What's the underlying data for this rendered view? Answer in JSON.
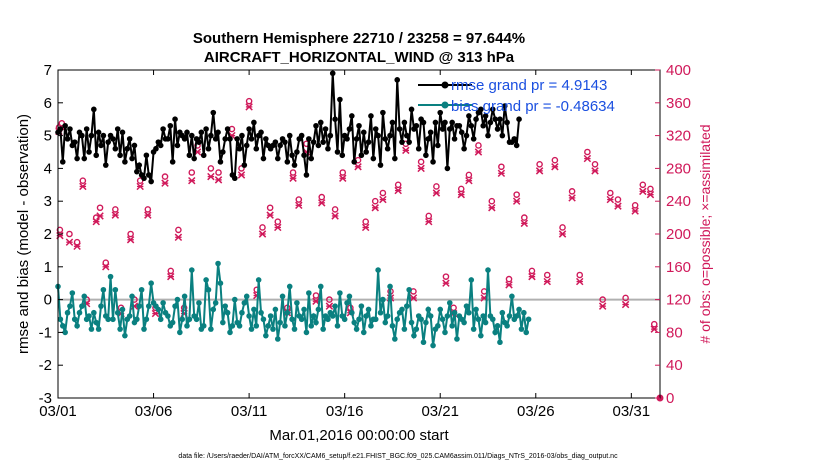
{
  "chart_data": {
    "type": "line",
    "title_line1": "Southern Hemisphere 22710 / 23258 = 97.644%",
    "title_line2": "AIRCRAFT_HORIZONTAL_WIND @ 313 hPa",
    "ylabel": "rmse and bias (model - observation)",
    "y2label": "# of obs: o=possible; ×=assimilated",
    "xlabel": "Mar.01,2016 00:00:00 start",
    "footnote": "data file: /Users/raeder/DAI/ATM_forcXX/CAM6_setup/f.e21.FHIST_BGC.f09_025.CAM6assim.011/Diags_NTrS_2016-03/obs_diag_output.nc",
    "xlim": [
      0,
      31.5
    ],
    "ylim": [
      -3,
      7
    ],
    "y2lim": [
      0,
      400
    ],
    "x_ticks": [
      {
        "value": 0,
        "label": "03/01"
      },
      {
        "value": 5,
        "label": "03/06"
      },
      {
        "value": 10,
        "label": "03/11"
      },
      {
        "value": 15,
        "label": "03/16"
      },
      {
        "value": 20,
        "label": "03/21"
      },
      {
        "value": 25,
        "label": "03/26"
      },
      {
        "value": 30,
        "label": "03/31"
      }
    ],
    "y_ticks": [
      "-3",
      "-2",
      "-1",
      "0",
      "1",
      "2",
      "3",
      "4",
      "5",
      "6",
      "7"
    ],
    "y2_ticks": [
      "0",
      "40",
      "80",
      "120",
      "160",
      "200",
      "240",
      "280",
      "320",
      "360",
      "400"
    ],
    "legend": [
      {
        "label": "rmse grand pr = 4.9143",
        "color": "#000000"
      },
      {
        "label": "bias grand pr = -0.48634",
        "color": "#0a8080"
      }
    ],
    "colors": {
      "rmse": "#000000",
      "bias": "#0a8080",
      "obs": "#d0195a",
      "zero": "#b0b0b0"
    },
    "step": 0.125,
    "rmse": [
      5.1,
      5.2,
      4.2,
      5.3,
      4.9,
      5.2,
      4.7,
      4.8,
      4.3,
      5.1,
      5.0,
      4.3,
      5.2,
      4.5,
      5.0,
      5.8,
      4.4,
      5.1,
      4.7,
      5.0,
      4.1,
      4.8,
      5.0,
      4.9,
      4.6,
      5.2,
      4.4,
      5.1,
      4.2,
      4.6,
      4.9,
      4.3,
      4.7,
      3.9,
      4.1,
      3.8,
      3.7,
      4.4,
      3.8,
      3.6,
      4.5,
      4.6,
      4.8,
      4.7,
      5.2,
      4.9,
      4.9,
      5.3,
      4.2,
      5.5,
      4.7,
      5.1,
      5.0,
      4.9,
      5.1,
      4.4,
      5.0,
      4.3,
      4.9,
      4.8,
      5.1,
      4.4,
      5.2,
      4.6,
      5.0,
      5.7,
      4.9,
      5.1,
      4.2,
      4.5,
      4.9,
      5.2,
      4.9,
      3.8,
      3.7,
      4.9,
      4.6,
      5.0,
      4.1,
      4.7,
      5.2,
      4.9,
      5.4,
      4.6,
      5.0,
      5.1,
      4.3,
      4.9,
      4.7,
      4.6,
      4.7,
      4.8,
      4.3,
      4.7,
      4.9,
      4.8,
      4.2,
      5.0,
      4.4,
      4.1,
      4.5,
      4.9,
      5.0,
      4.4,
      3.8,
      4.9,
      4.3,
      4.8,
      5.3,
      4.7,
      5.4,
      4.8,
      5.2,
      4.6,
      5.0,
      6.9,
      5.5,
      4.5,
      6.1,
      4.4,
      5.0,
      4.9,
      5.2,
      5.6,
      4.2,
      4.9,
      5.3,
      4.4,
      5.1,
      4.5,
      4.8,
      5.6,
      4.3,
      5.2,
      5.0,
      4.1,
      5.7,
      4.9,
      4.6,
      5.0,
      5.4,
      4.3,
      6.7,
      5.2,
      4.8,
      5.4,
      5.0,
      4.8,
      5.8,
      5.2,
      5.3,
      4.6,
      5.5,
      5.4,
      4.4,
      4.9,
      5.1,
      4.2,
      5.4,
      4.7,
      5.7,
      5.2,
      5.4,
      4.0,
      5.2,
      5.4,
      4.9,
      5.3,
      5.3,
      5.1,
      4.6,
      5.0,
      5.6,
      5.3,
      4.9,
      5.5,
      5.7,
      5.8,
      5.3,
      5.6,
      5.0,
      5.4,
      5.8,
      5.5,
      5.2,
      5.5,
      5.0,
      5.9,
      5.4,
      4.8,
      4.8,
      4.9,
      4.7,
      5.5
    ],
    "bias": [
      0.4,
      -0.6,
      -0.8,
      -1.0,
      -0.4,
      -0.2,
      0.2,
      -0.6,
      -0.8,
      -0.4,
      -0.2,
      0.1,
      -0.6,
      -0.5,
      -0.9,
      -0.4,
      -0.7,
      -0.9,
      -0.2,
      0.3,
      -0.5,
      -0.6,
      0.7,
      -0.6,
      0.3,
      -0.4,
      -0.9,
      -0.3,
      -1.1,
      -0.6,
      -0.5,
      0.1,
      -0.7,
      -0.6,
      -0.2,
      0.3,
      -0.9,
      -0.6,
      -0.2,
      0.5,
      -0.1,
      -0.2,
      -0.3,
      -0.6,
      -0.1,
      -0.4,
      -0.5,
      -0.8,
      -0.7,
      -0.2,
      0.0,
      -1.0,
      -0.6,
      0.1,
      -0.8,
      -0.6,
      0.9,
      -0.5,
      -0.6,
      -0.1,
      -0.9,
      -0.8,
      0.6,
      0.3,
      -0.9,
      -0.3,
      -0.1,
      1.1,
      0.5,
      -0.7,
      -0.2,
      -0.4,
      -1.0,
      -0.8,
      0.0,
      -0.7,
      -0.8,
      -0.4,
      -0.1,
      0.1,
      -0.5,
      -0.9,
      -0.3,
      -0.8,
      0.6,
      -0.4,
      -0.6,
      -1.1,
      -0.8,
      -0.5,
      -0.9,
      -0.3,
      -1.2,
      -0.7,
      0.1,
      -0.8,
      -0.4,
      0.4,
      -0.6,
      -0.9,
      -0.1,
      -0.5,
      -0.6,
      -0.3,
      -1.0,
      0.2,
      -0.8,
      -0.5,
      -0.7,
      -0.3,
      0.4,
      -0.9,
      -0.5,
      -0.6,
      -0.4,
      -0.5,
      -0.2,
      -0.8,
      0.2,
      -0.5,
      -0.6,
      -0.1,
      0.1,
      -0.4,
      -0.7,
      -0.9,
      -0.6,
      -0.2,
      -1.0,
      -0.5,
      -0.3,
      -0.8,
      -0.6,
      -0.6,
      0.9,
      -0.4,
      0.0,
      -0.7,
      -0.5,
      0.4,
      -0.8,
      -1.2,
      -0.6,
      -0.4,
      -0.3,
      -0.9,
      -0.2,
      0.3,
      -0.7,
      -1.1,
      -0.9,
      -0.5,
      -0.6,
      -1.3,
      -0.7,
      -0.3,
      -0.5,
      -1.4,
      -0.9,
      -0.8,
      -0.3,
      -0.6,
      -1.0,
      -0.5,
      -0.1,
      -0.8,
      -0.4,
      -1.2,
      -0.5,
      -0.6,
      -0.7,
      -0.2,
      -0.4,
      0.6,
      -0.9,
      -0.3,
      -0.6,
      -1.1,
      -0.5,
      -0.7,
      0.9,
      -0.5,
      -0.6,
      -1.0,
      -0.8,
      -1.3,
      -0.4,
      -0.7,
      -0.8,
      -0.5,
      0.1,
      -0.6,
      -0.5,
      -0.3,
      -0.9,
      -0.4,
      -1.0,
      -0.6
    ],
    "obs_possible_markers": [
      [
        0.05,
        330
      ],
      [
        0.2,
        335
      ],
      [
        0.1,
        205
      ],
      [
        0.6,
        200
      ],
      [
        1.0,
        190
      ],
      [
        1.3,
        265
      ],
      [
        1.5,
        120
      ],
      [
        2.0,
        220
      ],
      [
        2.2,
        232
      ],
      [
        2.5,
        165
      ],
      [
        3.0,
        230
      ],
      [
        3.3,
        110
      ],
      [
        3.8,
        200
      ],
      [
        4.0,
        120
      ],
      [
        4.3,
        265
      ],
      [
        4.7,
        230
      ],
      [
        5.1,
        110
      ],
      [
        5.6,
        270
      ],
      [
        5.9,
        155
      ],
      [
        6.3,
        205
      ],
      [
        6.6,
        110
      ],
      [
        7.0,
        275
      ],
      [
        7.3,
        308
      ],
      [
        8.0,
        280
      ],
      [
        8.4,
        275
      ],
      [
        9.1,
        328
      ],
      [
        9.6,
        280
      ],
      [
        10.0,
        362
      ],
      [
        10.4,
        132
      ],
      [
        10.7,
        208
      ],
      [
        11.1,
        232
      ],
      [
        11.5,
        215
      ],
      [
        12.0,
        110
      ],
      [
        12.3,
        275
      ],
      [
        12.6,
        242
      ],
      [
        13.0,
        310
      ],
      [
        13.5,
        125
      ],
      [
        13.8,
        245
      ],
      [
        14.2,
        120
      ],
      [
        14.5,
        230
      ],
      [
        14.9,
        275
      ],
      [
        15.3,
        110
      ],
      [
        15.7,
        290
      ],
      [
        16.1,
        215
      ],
      [
        16.6,
        240
      ],
      [
        17.0,
        250
      ],
      [
        17.4,
        130
      ],
      [
        17.8,
        260
      ],
      [
        18.2,
        310
      ],
      [
        18.6,
        130
      ],
      [
        19.0,
        288
      ],
      [
        19.4,
        222
      ],
      [
        19.8,
        258
      ],
      [
        20.3,
        148
      ],
      [
        20.7,
        110
      ],
      [
        21.1,
        255
      ],
      [
        21.5,
        272
      ],
      [
        22.0,
        308
      ],
      [
        22.3,
        130
      ],
      [
        22.7,
        240
      ],
      [
        23.2,
        282
      ],
      [
        23.6,
        145
      ],
      [
        24.0,
        248
      ],
      [
        24.4,
        220
      ],
      [
        24.8,
        155
      ],
      [
        25.2,
        285
      ],
      [
        25.6,
        150
      ],
      [
        26.0,
        290
      ],
      [
        26.4,
        208
      ],
      [
        26.9,
        252
      ],
      [
        27.3,
        150
      ],
      [
        27.7,
        300
      ],
      [
        28.1,
        285
      ],
      [
        28.5,
        120
      ],
      [
        28.9,
        250
      ],
      [
        29.3,
        242
      ],
      [
        29.7,
        122
      ],
      [
        30.2,
        235
      ],
      [
        30.6,
        260
      ],
      [
        31.0,
        255
      ],
      [
        31.2,
        90
      ]
    ],
    "obs_assimilated_markers": [
      [
        0.05,
        325
      ],
      [
        0.2,
        330
      ],
      [
        0.1,
        198
      ],
      [
        0.6,
        190
      ],
      [
        1.0,
        185
      ],
      [
        1.3,
        258
      ],
      [
        1.5,
        115
      ],
      [
        2.0,
        215
      ],
      [
        2.2,
        222
      ],
      [
        2.5,
        160
      ],
      [
        3.0,
        223
      ],
      [
        3.3,
        103
      ],
      [
        3.8,
        193
      ],
      [
        4.0,
        112
      ],
      [
        4.3,
        258
      ],
      [
        4.7,
        223
      ],
      [
        5.1,
        103
      ],
      [
        5.6,
        262
      ],
      [
        5.9,
        148
      ],
      [
        6.3,
        196
      ],
      [
        6.6,
        103
      ],
      [
        7.0,
        265
      ],
      [
        7.3,
        300
      ],
      [
        8.0,
        270
      ],
      [
        8.4,
        266
      ],
      [
        9.1,
        320
      ],
      [
        9.6,
        272
      ],
      [
        10.0,
        355
      ],
      [
        10.4,
        125
      ],
      [
        10.7,
        200
      ],
      [
        11.1,
        223
      ],
      [
        11.5,
        208
      ],
      [
        12.0,
        104
      ],
      [
        12.3,
        268
      ],
      [
        12.6,
        235
      ],
      [
        13.0,
        300
      ],
      [
        13.5,
        118
      ],
      [
        13.8,
        238
      ],
      [
        14.2,
        112
      ],
      [
        14.5,
        222
      ],
      [
        14.9,
        268
      ],
      [
        15.3,
        104
      ],
      [
        15.7,
        282
      ],
      [
        16.1,
        208
      ],
      [
        16.6,
        232
      ],
      [
        17.0,
        242
      ],
      [
        17.4,
        122
      ],
      [
        17.8,
        253
      ],
      [
        18.2,
        302
      ],
      [
        18.6,
        122
      ],
      [
        19.0,
        280
      ],
      [
        19.4,
        215
      ],
      [
        19.8,
        250
      ],
      [
        20.3,
        140
      ],
      [
        20.7,
        103
      ],
      [
        21.1,
        248
      ],
      [
        21.5,
        265
      ],
      [
        22.0,
        300
      ],
      [
        22.3,
        122
      ],
      [
        22.7,
        232
      ],
      [
        23.2,
        274
      ],
      [
        23.6,
        138
      ],
      [
        24.0,
        240
      ],
      [
        24.4,
        213
      ],
      [
        24.8,
        148
      ],
      [
        25.2,
        277
      ],
      [
        25.6,
        142
      ],
      [
        26.0,
        282
      ],
      [
        26.4,
        200
      ],
      [
        26.9,
        244
      ],
      [
        27.3,
        142
      ],
      [
        27.7,
        292
      ],
      [
        28.1,
        277
      ],
      [
        28.5,
        112
      ],
      [
        28.9,
        242
      ],
      [
        29.3,
        234
      ],
      [
        29.7,
        114
      ],
      [
        30.2,
        228
      ],
      [
        30.6,
        252
      ],
      [
        31.0,
        248
      ],
      [
        31.2,
        84
      ]
    ]
  }
}
